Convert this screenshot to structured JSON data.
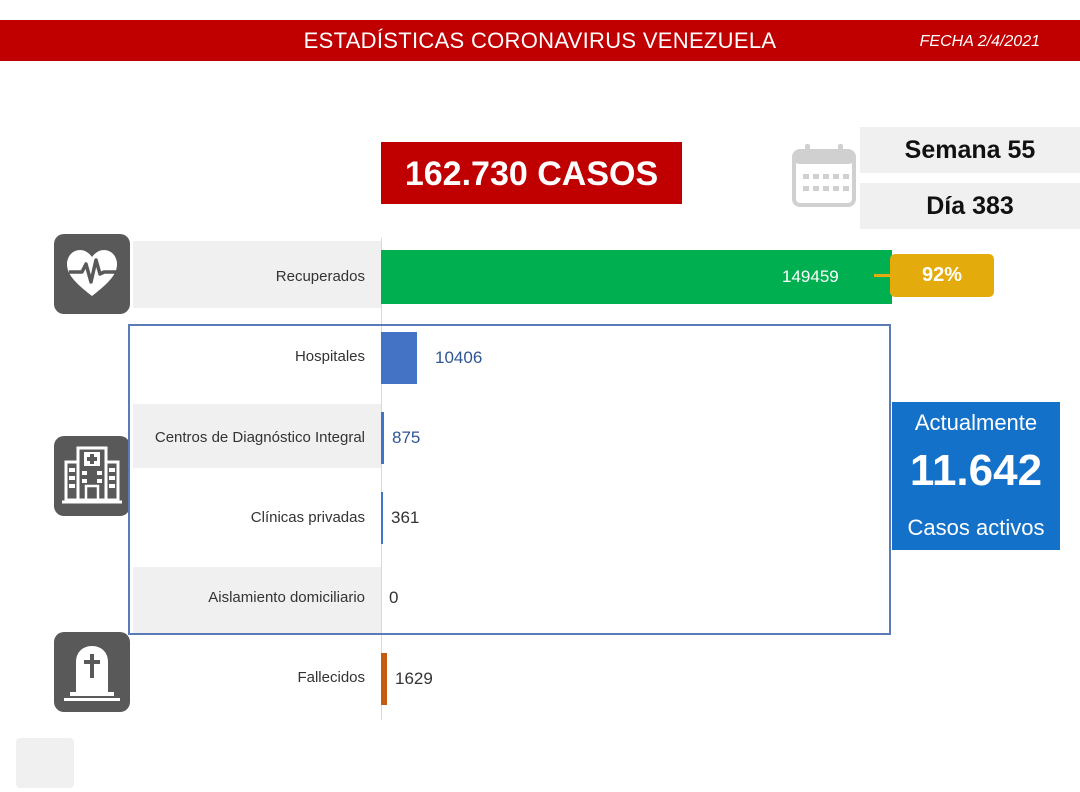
{
  "header": {
    "title": "ESTADÍSTICAS CORONAVIRUS VENEZUELA",
    "date": "FECHA 2/4/2021"
  },
  "summary": {
    "total_cases": "162.730 CASOS",
    "week": "Semana 55",
    "day": "Día 383",
    "recovered_pct": "92%",
    "active_title": "Actualmente",
    "active_number": "11.642",
    "active_caption": "Casos activos"
  },
  "icons": {
    "calendar": "calendar-icon",
    "recovered": "heart-pulse-icon",
    "hospital": "hospital-building-icon",
    "deceased": "tombstone-icon"
  },
  "colors": {
    "header": "#c00000",
    "recovered": "#00b050",
    "hospital": "#4472c4",
    "deceased": "#c55a11",
    "badge": "#e3ac0c",
    "active": "#1471c9"
  },
  "chart_data": {
    "type": "bar",
    "orientation": "horizontal",
    "categories": [
      "Recuperados",
      "Hospitales",
      "Centros de Diagnóstico Integral",
      "Clínicas privadas",
      "Aislamiento domiciliario",
      "Fallecidos"
    ],
    "values": [
      149459,
      10406,
      875,
      361,
      0,
      1629
    ],
    "value_labels": [
      "149459",
      "10406",
      "875",
      "361",
      "0",
      "1629"
    ],
    "xlim": [
      0,
      162730
    ]
  }
}
